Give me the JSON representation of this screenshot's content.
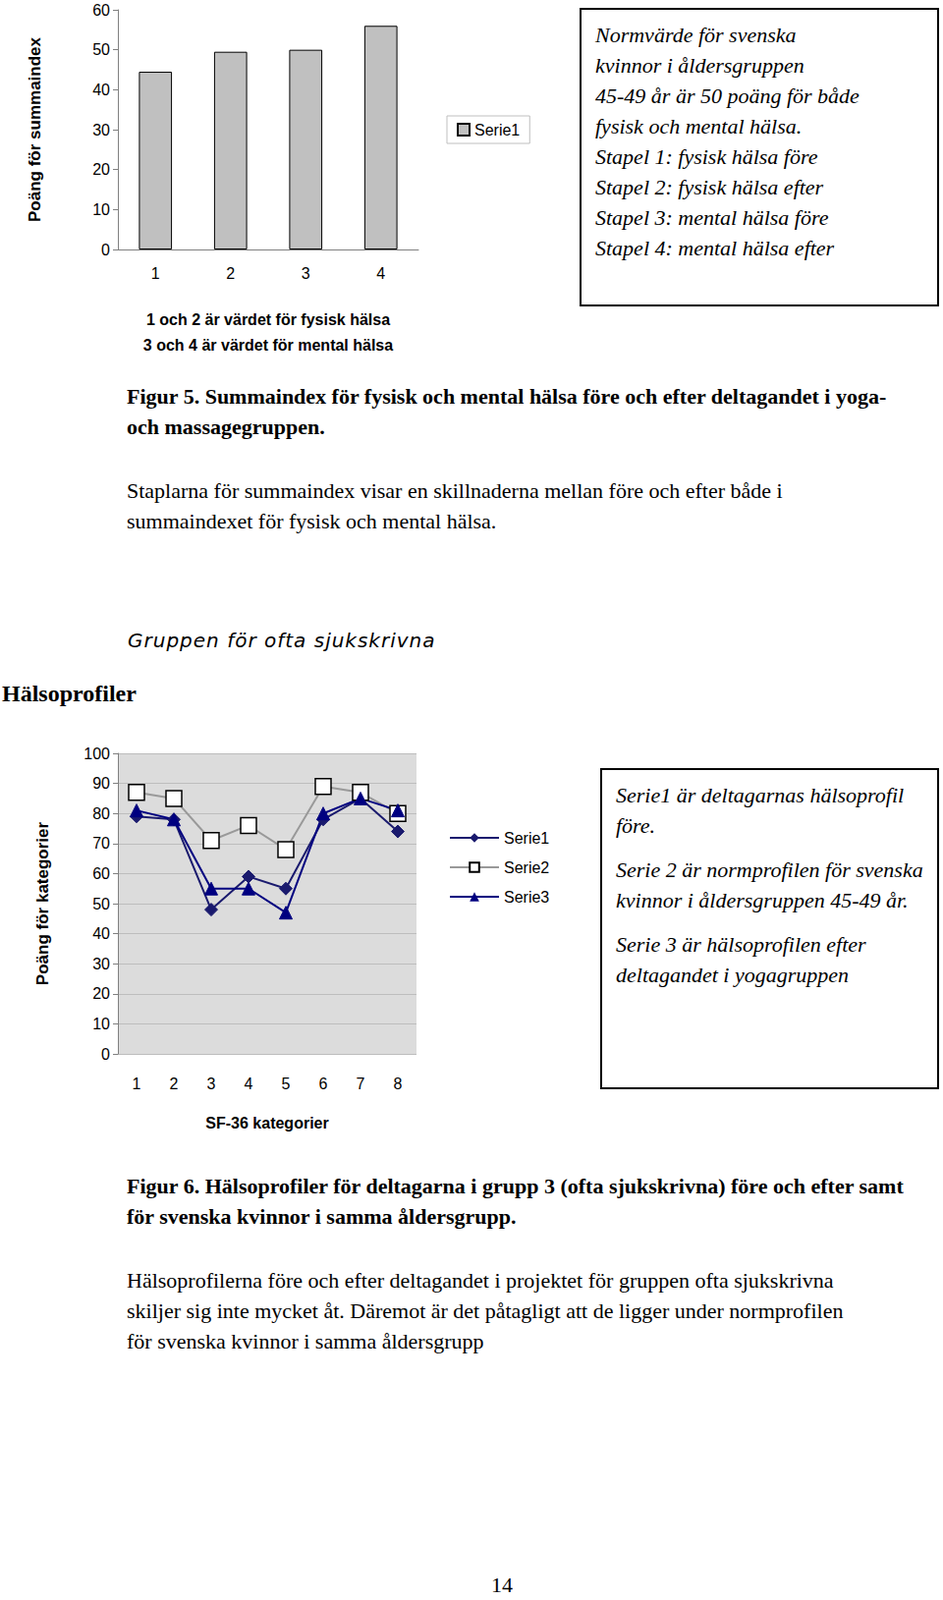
{
  "chart_data": [
    {
      "type": "bar",
      "ylabel": "Poäng för summaindex",
      "xlabel": "1 och 2 är värdet för fysisk hälsa\n3 och 4 är värdet för mental hälsa",
      "categories": [
        "1",
        "2",
        "3",
        "4"
      ],
      "series": [
        {
          "name": "Serie1",
          "color": "#c0c0c0",
          "values": [
            44.5,
            49.5,
            50,
            56
          ]
        }
      ],
      "ylim": [
        0,
        60
      ],
      "yticks": [
        0,
        10,
        20,
        30,
        40,
        50,
        60
      ],
      "grid": false,
      "legend": "right",
      "annotations": [
        "Normvärde för svenska",
        "kvinnor i åldersgruppen",
        "45-49 år är 50 poäng för både",
        "fysisk och mental hälsa.",
        "Stapel 1:  fysisk hälsa före",
        "Stapel 2: fysisk hälsa efter",
        "Stapel 3: mental hälsa före",
        "Stapel 4: mental hälsa efter"
      ]
    },
    {
      "type": "line",
      "title": "Gruppen för ofta sjukskrivna",
      "ylabel": "Poäng för kategorier",
      "xlabel": "SF-36 kategorier",
      "categories": [
        "1",
        "2",
        "3",
        "4",
        "5",
        "6",
        "7",
        "8"
      ],
      "series": [
        {
          "name": "Serie1",
          "color": "#1a1a6e",
          "marker": "diamond",
          "values": [
            79,
            78,
            48,
            59,
            55,
            78,
            85,
            74
          ]
        },
        {
          "name": "Serie2",
          "color": "#999999",
          "marker": "open_square",
          "values": [
            87,
            85,
            71,
            76,
            68,
            89,
            87,
            80
          ]
        },
        {
          "name": "Serie3",
          "color": "#000080",
          "marker": "triangle",
          "values": [
            81,
            78,
            55,
            55,
            47,
            80,
            85,
            81
          ]
        }
      ],
      "ylim": [
        0,
        100
      ],
      "yticks": [
        0,
        10,
        20,
        30,
        40,
        50,
        60,
        70,
        80,
        90,
        100
      ],
      "grid": true,
      "legend": "right",
      "annotations": [
        "Serie1 är deltagarnas hälsoprofil före.",
        "Serie 2 är normprofilen för svenska kvinnor i åldersgruppen 45-49 år.",
        "Serie 3 är hälsoprofilen efter deltagandet i yogagruppen"
      ]
    }
  ],
  "figures": [
    {
      "caption": "Figur 5. Summaindex för fysisk och mental hälsa före och efter deltagandet i yoga- och massagegruppen.",
      "text": "Staplarna för summaindex visar en skillnaderna mellan före och efter både i summaindexet för fysisk och mental hälsa."
    },
    {
      "caption": "Figur 6. Hälsoprofiler för deltagarna i grupp 3 (ofta sjukskrivna) före och efter samt för svenska kvinnor i samma åldersgrupp.",
      "text": "Hälsoprofilerna före och efter deltagandet i projektet för gruppen ofta sjukskrivna skiljer sig inte mycket åt. Däremot är det påtagligt att de ligger under normprofilen för svenska kvinnor i samma åldersgrupp"
    }
  ],
  "page": {
    "heading": "Hälsoprofiler",
    "page_number": "14"
  }
}
